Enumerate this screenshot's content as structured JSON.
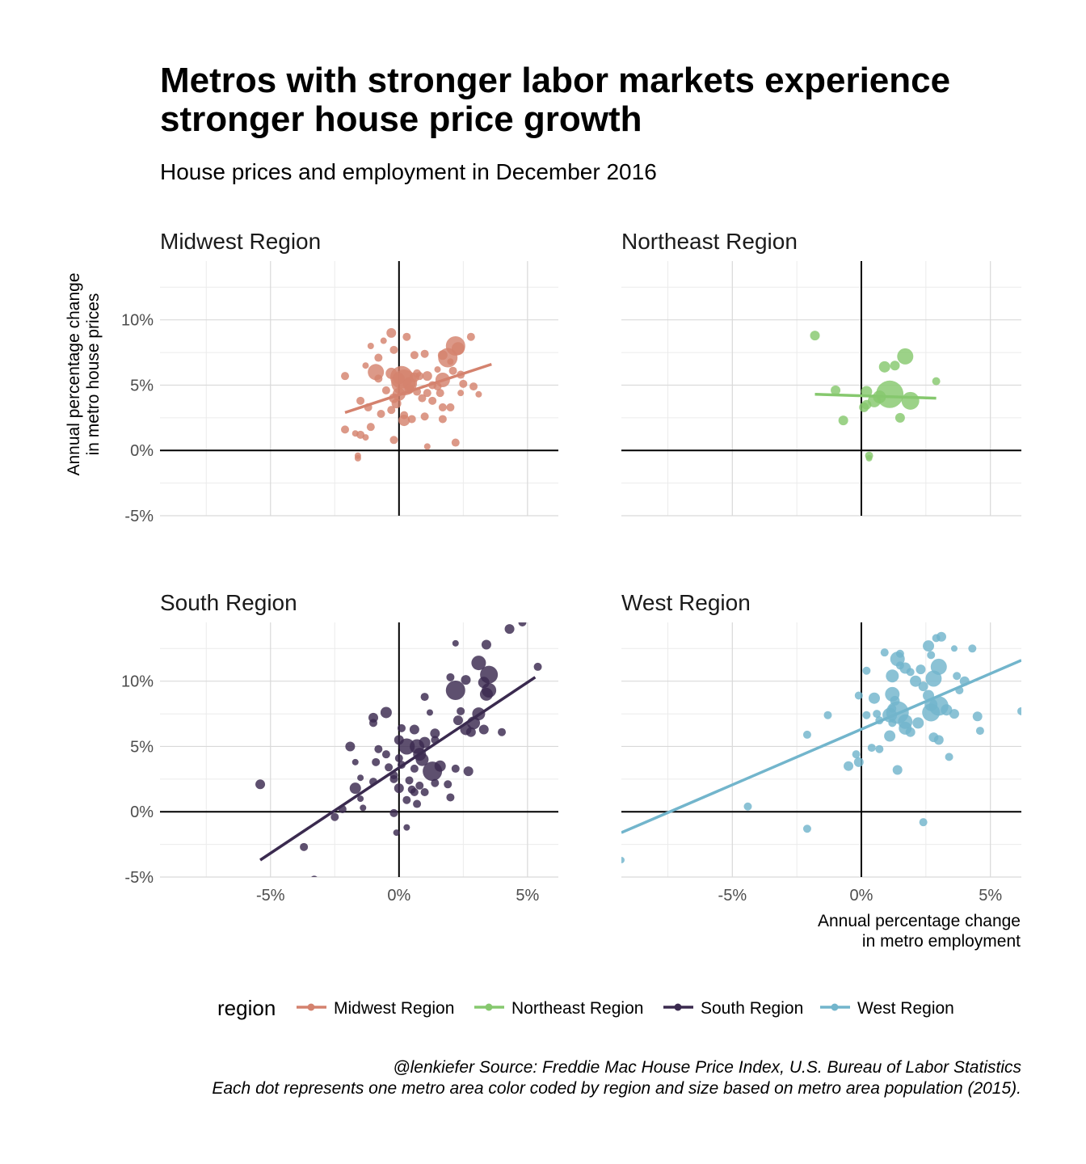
{
  "title": "Metros with stronger labor markets experience stronger house price growth",
  "subtitle": "House prices and employment in December 2016",
  "caption": {
    "line1": "@lenkiefer Source: Freddie Mac House Price Index, U.S. Bureau of Labor Statistics",
    "line2": "Each dot represents one metro area color coded by region and size based on metro area population (2015)."
  },
  "legend": {
    "title": "region",
    "entries": [
      {
        "name": "Midwest Region",
        "color": "#d4826e"
      },
      {
        "name": "Northeast Region",
        "color": "#86c86e"
      },
      {
        "name": "South Region",
        "color": "#3a2a4f"
      },
      {
        "name": "West Region",
        "color": "#72b5cc"
      }
    ]
  },
  "chart_data": {
    "type": "scatter",
    "faceted": true,
    "xlabel": "Annual percentage change\nin metro employment",
    "ylabel": "Annual percentage change\nin metro house prices",
    "xlim": [
      -9.3,
      6.2
    ],
    "ylim": [
      -5,
      14.5
    ],
    "xticks": [
      "-5%",
      "0%",
      "5%"
    ],
    "xtick_values": [
      -5,
      0,
      5
    ],
    "yticks": [
      "-5%",
      "0%",
      "5%",
      "10%"
    ],
    "ytick_values": [
      -5,
      0,
      5,
      10
    ],
    "grid": true,
    "legend_position": "bottom",
    "panels": [
      {
        "name": "Midwest Region",
        "color": "#d4826e",
        "fit": {
          "x": [
            -2.1,
            3.6
          ],
          "y": [
            2.9,
            6.6
          ]
        },
        "points": [
          [
            -0.3,
            9.0,
            6
          ],
          [
            0.3,
            8.7,
            5
          ],
          [
            -1.1,
            8.0,
            4
          ],
          [
            -0.6,
            8.4,
            4
          ],
          [
            -0.2,
            7.7,
            5
          ],
          [
            0.6,
            7.3,
            5
          ],
          [
            1.0,
            7.4,
            5
          ],
          [
            1.7,
            7.3,
            6
          ],
          [
            2.0,
            6.8,
            4
          ],
          [
            1.5,
            6.2,
            4
          ],
          [
            1.9,
            7.1,
            12
          ],
          [
            2.2,
            8.0,
            12
          ],
          [
            2.3,
            7.8,
            8
          ],
          [
            2.8,
            8.7,
            5
          ],
          [
            -0.8,
            7.1,
            5
          ],
          [
            -1.3,
            6.5,
            4
          ],
          [
            -0.9,
            6.0,
            10
          ],
          [
            -0.3,
            5.9,
            7
          ],
          [
            0.1,
            5.6,
            14
          ],
          [
            0.2,
            5.2,
            16
          ],
          [
            0.4,
            5.1,
            8
          ],
          [
            0.6,
            5.6,
            6
          ],
          [
            0.8,
            5.7,
            5
          ],
          [
            1.1,
            5.7,
            6
          ],
          [
            1.3,
            5.0,
            5
          ],
          [
            1.7,
            5.4,
            9
          ],
          [
            2.1,
            6.1,
            5
          ],
          [
            2.4,
            5.8,
            5
          ],
          [
            2.5,
            5.1,
            5
          ],
          [
            2.4,
            4.4,
            4
          ],
          [
            -2.1,
            5.7,
            5
          ],
          [
            -0.5,
            4.6,
            5
          ],
          [
            -0.2,
            4.0,
            6
          ],
          [
            -0.1,
            3.6,
            6
          ],
          [
            0.0,
            4.3,
            8
          ],
          [
            0.4,
            4.7,
            6
          ],
          [
            0.7,
            4.5,
            5
          ],
          [
            0.9,
            4.0,
            5
          ],
          [
            1.1,
            4.4,
            5
          ],
          [
            1.3,
            3.8,
            5
          ],
          [
            1.7,
            3.3,
            5
          ],
          [
            1.6,
            4.4,
            5
          ],
          [
            2.0,
            3.3,
            5
          ],
          [
            2.9,
            4.9,
            5
          ],
          [
            3.1,
            4.3,
            4
          ],
          [
            -1.5,
            3.8,
            5
          ],
          [
            -1.2,
            3.3,
            5
          ],
          [
            -0.7,
            2.8,
            5
          ],
          [
            -0.3,
            3.1,
            5
          ],
          [
            0.2,
            2.7,
            5
          ],
          [
            0.5,
            2.4,
            5
          ],
          [
            1.0,
            2.6,
            5
          ],
          [
            1.7,
            2.4,
            5
          ],
          [
            -2.1,
            1.6,
            5
          ],
          [
            -1.1,
            1.8,
            5
          ],
          [
            -1.5,
            1.2,
            5
          ],
          [
            -1.7,
            1.3,
            4
          ],
          [
            -1.3,
            1.0,
            4
          ],
          [
            -0.2,
            0.8,
            5
          ],
          [
            2.2,
            0.6,
            5
          ],
          [
            1.1,
            0.3,
            4
          ],
          [
            -1.6,
            -0.4,
            4
          ],
          [
            -1.6,
            -0.6,
            4
          ],
          [
            0.2,
            2.3,
            7
          ],
          [
            -0.8,
            5.5,
            5
          ],
          [
            1.5,
            4.9,
            5
          ],
          [
            0.0,
            5.5,
            7
          ],
          [
            0.7,
            5.9,
            5
          ]
        ]
      },
      {
        "name": "Northeast Region",
        "color": "#86c86e",
        "fit": {
          "x": [
            -1.8,
            2.9
          ],
          "y": [
            4.3,
            4.0
          ]
        },
        "points": [
          [
            -1.8,
            8.8,
            6
          ],
          [
            1.7,
            7.2,
            10
          ],
          [
            0.9,
            6.4,
            7
          ],
          [
            1.3,
            6.5,
            6
          ],
          [
            2.9,
            5.3,
            5
          ],
          [
            -1.0,
            4.6,
            6
          ],
          [
            0.2,
            4.5,
            7
          ],
          [
            1.1,
            4.3,
            17
          ],
          [
            0.7,
            4.1,
            8
          ],
          [
            0.5,
            3.8,
            8
          ],
          [
            1.9,
            3.8,
            11
          ],
          [
            0.2,
            3.5,
            6
          ],
          [
            0.1,
            3.3,
            6
          ],
          [
            1.5,
            2.5,
            6
          ],
          [
            -0.7,
            2.3,
            6
          ],
          [
            0.3,
            -0.4,
            5
          ],
          [
            0.3,
            -0.6,
            4
          ]
        ]
      },
      {
        "name": "South Region",
        "color": "#3a2a4f",
        "fit": {
          "x": [
            -5.4,
            5.3
          ],
          "y": [
            -3.7,
            10.3
          ]
        },
        "points": [
          [
            4.8,
            14.5,
            5
          ],
          [
            4.3,
            14.0,
            6
          ],
          [
            3.4,
            12.8,
            6
          ],
          [
            2.2,
            12.9,
            4
          ],
          [
            3.1,
            11.4,
            9
          ],
          [
            3.5,
            10.5,
            11
          ],
          [
            5.4,
            11.1,
            5
          ],
          [
            2.0,
            10.3,
            5
          ],
          [
            2.6,
            10.1,
            6
          ],
          [
            3.3,
            9.9,
            7
          ],
          [
            2.2,
            9.3,
            12
          ],
          [
            3.5,
            9.3,
            9
          ],
          [
            3.4,
            9.0,
            8
          ],
          [
            1.0,
            8.8,
            5
          ],
          [
            1.2,
            7.6,
            4
          ],
          [
            2.4,
            7.7,
            5
          ],
          [
            -0.5,
            7.6,
            7
          ],
          [
            -1.0,
            7.2,
            6
          ],
          [
            3.1,
            7.5,
            8
          ],
          [
            2.3,
            7.0,
            6
          ],
          [
            -1.0,
            6.8,
            5
          ],
          [
            0.1,
            6.4,
            5
          ],
          [
            0.6,
            6.3,
            6
          ],
          [
            1.4,
            6.0,
            6
          ],
          [
            2.9,
            6.8,
            8
          ],
          [
            3.3,
            6.3,
            6
          ],
          [
            2.6,
            6.3,
            7
          ],
          [
            2.8,
            6.1,
            6
          ],
          [
            4.0,
            6.1,
            5
          ],
          [
            0.0,
            5.5,
            6
          ],
          [
            0.3,
            5.0,
            10
          ],
          [
            0.7,
            5.0,
            9
          ],
          [
            1.4,
            5.5,
            5
          ],
          [
            -1.9,
            5.0,
            6
          ],
          [
            -0.8,
            4.8,
            5
          ],
          [
            -0.5,
            4.4,
            5
          ],
          [
            0.8,
            4.4,
            8
          ],
          [
            0.9,
            4.0,
            8
          ],
          [
            -1.7,
            3.8,
            4
          ],
          [
            -0.9,
            3.8,
            5
          ],
          [
            -0.4,
            3.4,
            5
          ],
          [
            0.1,
            3.6,
            5
          ],
          [
            1.3,
            3.1,
            12
          ],
          [
            0.6,
            3.3,
            5
          ],
          [
            -0.2,
            2.8,
            5
          ],
          [
            1.6,
            3.5,
            7
          ],
          [
            2.2,
            3.3,
            5
          ],
          [
            2.7,
            3.1,
            6
          ],
          [
            -1.5,
            2.6,
            4
          ],
          [
            -1.0,
            2.3,
            5
          ],
          [
            -0.2,
            2.5,
            5
          ],
          [
            0.4,
            2.4,
            5
          ],
          [
            0.8,
            2.0,
            5
          ],
          [
            1.4,
            2.2,
            5
          ],
          [
            1.9,
            2.1,
            5
          ],
          [
            -1.7,
            1.8,
            7
          ],
          [
            0.0,
            1.8,
            6
          ],
          [
            0.5,
            1.7,
            5
          ],
          [
            0.6,
            1.5,
            5
          ],
          [
            1.0,
            1.5,
            5
          ],
          [
            2.0,
            1.1,
            5
          ],
          [
            -1.5,
            1.0,
            4
          ],
          [
            0.3,
            0.9,
            5
          ],
          [
            0.7,
            0.6,
            5
          ],
          [
            -2.2,
            0.2,
            5
          ],
          [
            -1.4,
            0.3,
            4
          ],
          [
            -0.2,
            -0.1,
            5
          ],
          [
            -2.5,
            -0.4,
            5
          ],
          [
            0.3,
            -1.2,
            4
          ],
          [
            -0.1,
            -1.6,
            4
          ],
          [
            -3.7,
            -2.7,
            5
          ],
          [
            -5.4,
            2.1,
            6
          ],
          [
            -3.3,
            -5.2,
            5
          ],
          [
            0.0,
            4.1,
            5
          ],
          [
            1.0,
            5.3,
            7
          ]
        ]
      },
      {
        "name": "West Region",
        "color": "#72b5cc",
        "fit": {
          "x": [
            -9.3,
            6.2
          ],
          "y": [
            -1.6,
            11.6
          ]
        },
        "points": [
          [
            3.1,
            13.4,
            6
          ],
          [
            2.9,
            13.3,
            5
          ],
          [
            2.6,
            12.7,
            7
          ],
          [
            3.6,
            12.5,
            4
          ],
          [
            4.3,
            12.5,
            5
          ],
          [
            2.7,
            12.0,
            5
          ],
          [
            1.5,
            12.1,
            5
          ],
          [
            1.4,
            11.7,
            9
          ],
          [
            1.5,
            11.2,
            5
          ],
          [
            0.9,
            12.2,
            5
          ],
          [
            3.0,
            11.1,
            10
          ],
          [
            1.7,
            11.0,
            7
          ],
          [
            2.3,
            10.9,
            6
          ],
          [
            1.9,
            10.7,
            5
          ],
          [
            0.2,
            10.8,
            5
          ],
          [
            3.7,
            10.4,
            5
          ],
          [
            1.2,
            10.4,
            8
          ],
          [
            2.8,
            10.2,
            10
          ],
          [
            2.1,
            10.0,
            7
          ],
          [
            4.0,
            10.0,
            6
          ],
          [
            2.4,
            9.6,
            6
          ],
          [
            3.8,
            9.3,
            5
          ],
          [
            1.2,
            9.0,
            9
          ],
          [
            2.6,
            8.9,
            7
          ],
          [
            -0.1,
            8.9,
            5
          ],
          [
            0.5,
            8.7,
            7
          ],
          [
            1.3,
            8.5,
            6
          ],
          [
            2.7,
            8.2,
            8
          ],
          [
            3.0,
            8.1,
            12
          ],
          [
            1.2,
            7.9,
            5
          ],
          [
            2.7,
            7.6,
            11
          ],
          [
            3.3,
            7.8,
            7
          ],
          [
            3.6,
            7.5,
            6
          ],
          [
            1.4,
            7.6,
            14
          ],
          [
            1.1,
            7.4,
            9
          ],
          [
            0.6,
            7.5,
            5
          ],
          [
            4.5,
            7.3,
            6
          ],
          [
            1.7,
            6.9,
            9
          ],
          [
            2.2,
            6.8,
            7
          ],
          [
            -1.3,
            7.4,
            5
          ],
          [
            0.2,
            7.4,
            5
          ],
          [
            0.7,
            7.0,
            5
          ],
          [
            1.2,
            6.8,
            5
          ],
          [
            1.7,
            6.4,
            8
          ],
          [
            1.9,
            6.1,
            6
          ],
          [
            4.6,
            6.2,
            5
          ],
          [
            1.1,
            5.8,
            7
          ],
          [
            2.8,
            5.7,
            6
          ],
          [
            3.0,
            5.5,
            6
          ],
          [
            -2.1,
            5.9,
            5
          ],
          [
            0.4,
            4.9,
            5
          ],
          [
            -0.2,
            4.4,
            5
          ],
          [
            0.7,
            4.8,
            5
          ],
          [
            3.4,
            4.2,
            5
          ],
          [
            -0.5,
            3.5,
            6
          ],
          [
            -0.1,
            3.8,
            6
          ],
          [
            1.4,
            3.2,
            6
          ],
          [
            -4.4,
            0.4,
            5
          ],
          [
            -2.1,
            -1.3,
            5
          ],
          [
            2.4,
            -0.8,
            5
          ],
          [
            -9.3,
            -3.7,
            4
          ],
          [
            6.2,
            7.7,
            5
          ]
        ]
      }
    ]
  }
}
